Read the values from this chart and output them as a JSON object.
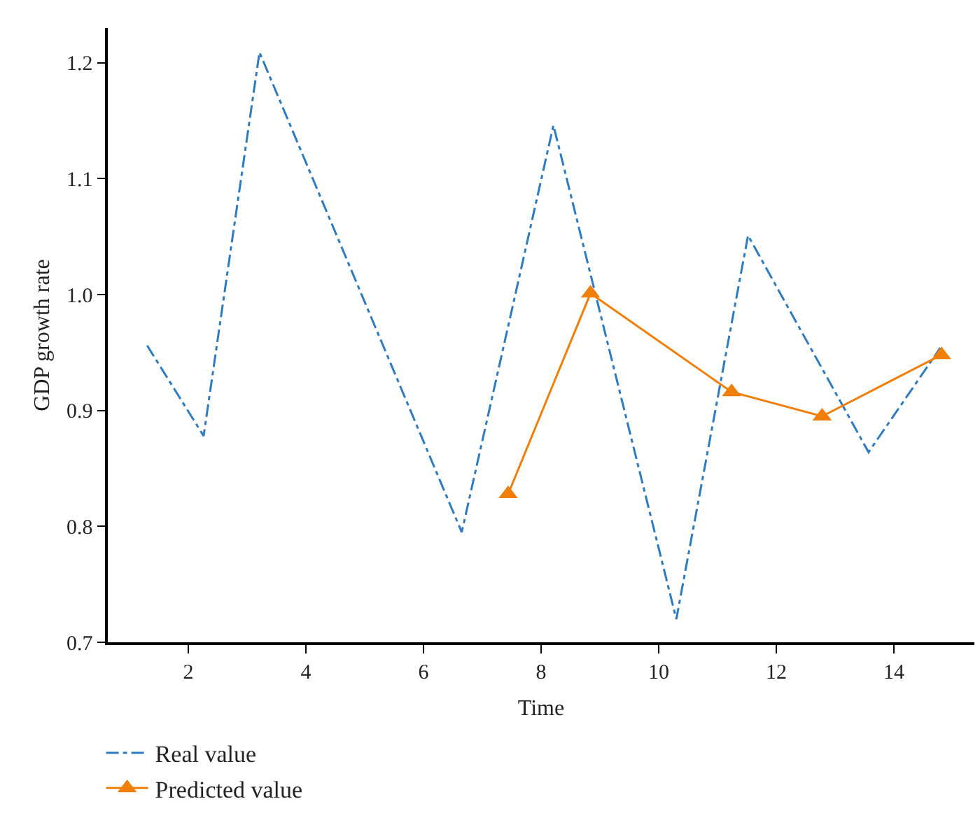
{
  "chart_data": {
    "type": "line",
    "xlabel": "Time",
    "ylabel": "GDP growth rate",
    "xlim": [
      0.63,
      15.37
    ],
    "xticks": [
      2,
      4,
      6,
      8,
      10,
      12,
      14
    ],
    "ylim": [
      0.7,
      1.23
    ],
    "yticks": [
      0.7,
      0.8,
      0.9,
      {
        "value": 1,
        "label": "1.0"
      },
      1.1,
      1.2
    ],
    "legend": "bottom left",
    "series": [
      {
        "name": "Real value",
        "color": "#2f7bbf",
        "line_style": "dashdot",
        "marker": "none",
        "x": [
          1.3,
          2.26,
          3.21,
          6.65,
          8.21,
          10.3,
          11.52,
          13.57,
          14.79
        ],
        "values": [
          0.956,
          0.878,
          1.209,
          0.795,
          1.146,
          0.72,
          1.051,
          0.864,
          0.954
        ]
      },
      {
        "name": "Predicted value",
        "color": "#f07f09",
        "line_style": "solid",
        "marker": "triangle",
        "x": [
          7.44,
          8.84,
          11.24,
          12.78,
          14.81
        ],
        "values": [
          0.828,
          1.001,
          0.916,
          0.895,
          0.948
        ]
      }
    ]
  }
}
